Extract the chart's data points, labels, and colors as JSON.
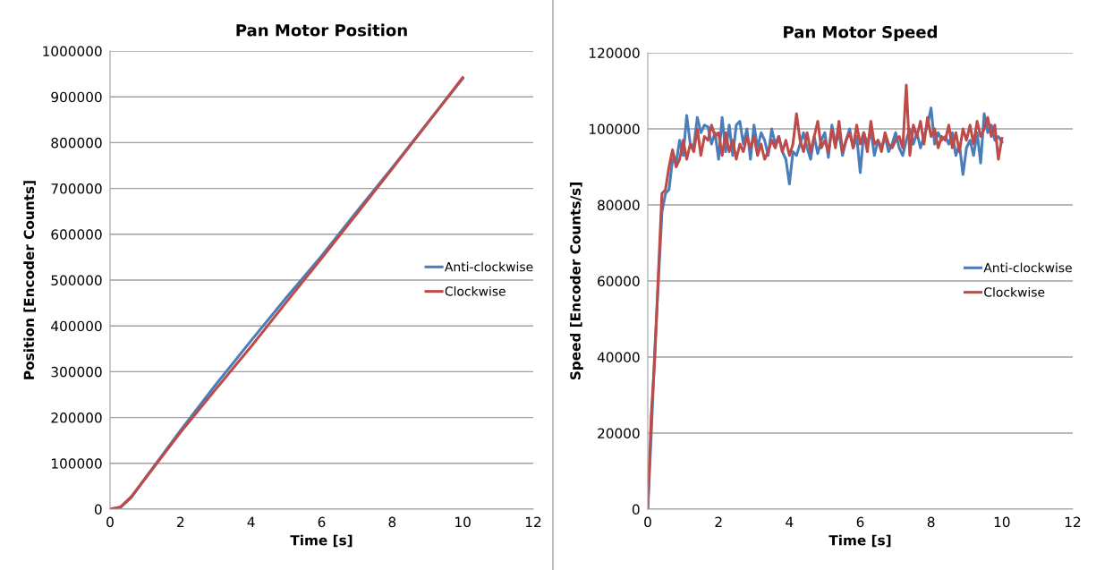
{
  "chart_data": [
    {
      "type": "line",
      "title": "Pan Motor Position",
      "xlabel": "Time [s]",
      "ylabel": "Position [Encoder Counts]",
      "xlim": [
        0,
        12
      ],
      "xticks": [
        0,
        2,
        4,
        6,
        8,
        10,
        12
      ],
      "ylim": [
        0,
        1000000
      ],
      "yticks": [
        0,
        100000,
        200000,
        300000,
        400000,
        500000,
        600000,
        700000,
        800000,
        900000,
        1000000
      ],
      "grid": "y",
      "legend": "right",
      "marker": "none",
      "line_style": "solid",
      "x": [
        0,
        0.3,
        0.6,
        1,
        2,
        3,
        4,
        5,
        6,
        7,
        8,
        9,
        10
      ],
      "series": [
        {
          "name": "Anti-clockwise",
          "color": "#4a7ebb",
          "values": [
            0,
            4000,
            25000,
            68000,
            172000,
            272000,
            368000,
            462000,
            553000,
            650000,
            745000,
            843000,
            940000
          ]
        },
        {
          "name": "Clockwise",
          "color": "#be4b48",
          "values": [
            0,
            5000,
            27000,
            67000,
            168000,
            262000,
            355000,
            452000,
            548000,
            645000,
            743000,
            842000,
            942000
          ]
        }
      ]
    },
    {
      "type": "line",
      "title": "Pan Motor Speed",
      "xlabel": "Time [s]",
      "ylabel": "Speed [Encoder Counts/s]",
      "xlim": [
        0,
        12
      ],
      "xticks": [
        0,
        2,
        4,
        6,
        8,
        10,
        12
      ],
      "ylim": [
        0,
        120000
      ],
      "yticks": [
        0,
        20000,
        40000,
        60000,
        80000,
        100000,
        120000
      ],
      "grid": "y",
      "legend": "right",
      "marker": "none",
      "line_style": "solid",
      "x": [
        0,
        0.1,
        0.2,
        0.3,
        0.4,
        0.5,
        0.6,
        0.7,
        0.8,
        0.9,
        1.0,
        1.1,
        1.2,
        1.3,
        1.4,
        1.5,
        1.6,
        1.7,
        1.8,
        1.9,
        2.0,
        2.1,
        2.2,
        2.3,
        2.4,
        2.5,
        2.6,
        2.7,
        2.8,
        2.9,
        3.0,
        3.1,
        3.2,
        3.3,
        3.4,
        3.5,
        3.6,
        3.7,
        3.8,
        3.9,
        4.0,
        4.1,
        4.2,
        4.3,
        4.4,
        4.5,
        4.6,
        4.7,
        4.8,
        4.9,
        5.0,
        5.1,
        5.2,
        5.3,
        5.4,
        5.5,
        5.6,
        5.7,
        5.8,
        5.9,
        6.0,
        6.1,
        6.2,
        6.3,
        6.4,
        6.5,
        6.6,
        6.7,
        6.8,
        6.9,
        7.0,
        7.1,
        7.2,
        7.3,
        7.4,
        7.5,
        7.6,
        7.7,
        7.8,
        7.9,
        8.0,
        8.1,
        8.2,
        8.3,
        8.4,
        8.5,
        8.6,
        8.7,
        8.8,
        8.9,
        9.0,
        9.1,
        9.2,
        9.3,
        9.4,
        9.5,
        9.6,
        9.7,
        9.8,
        9.9,
        10.0
      ],
      "series": [
        {
          "name": "Anti-clockwise",
          "color": "#4a7ebb",
          "values": [
            0,
            20000,
            42000,
            60000,
            78000,
            83000,
            84000,
            92000,
            91000,
            97000,
            93000,
            103500,
            96000,
            95500,
            103000,
            99000,
            101000,
            100500,
            96000,
            99000,
            92000,
            103000,
            94000,
            101000,
            93000,
            101000,
            102000,
            96000,
            100000,
            92000,
            101000,
            95000,
            99000,
            97000,
            93000,
            100000,
            96000,
            98000,
            94000,
            92000,
            85500,
            94000,
            93000,
            96000,
            99000,
            95000,
            92000,
            98000,
            93500,
            97000,
            99000,
            92500,
            101000,
            96000,
            99000,
            93000,
            97000,
            100000,
            95000,
            98000,
            88500,
            99000,
            96000,
            99500,
            93000,
            97000,
            95000,
            98000,
            94000,
            96000,
            99000,
            95000,
            93000,
            97000,
            100000,
            96000,
            99000,
            95000,
            98000,
            101000,
            105500,
            96000,
            99000,
            97000,
            98000,
            96000,
            99000,
            93000,
            96000,
            88000,
            95000,
            97000,
            93000,
            99000,
            91000,
            104000,
            99000,
            101000,
            97000,
            98000,
            96500
          ]
        },
        {
          "name": "Clockwise",
          "color": "#be4b48",
          "values": [
            0,
            25000,
            40000,
            62000,
            83000,
            84000,
            90000,
            94500,
            90000,
            92000,
            97000,
            92000,
            96000,
            94000,
            100000,
            93000,
            98000,
            97000,
            101000,
            98000,
            99000,
            93000,
            99000,
            94000,
            97000,
            92000,
            96000,
            94000,
            98000,
            95000,
            98000,
            93000,
            96000,
            92000,
            94000,
            97000,
            95000,
            98000,
            94000,
            97000,
            93000,
            96000,
            104000,
            97000,
            94000,
            99000,
            94000,
            98000,
            102000,
            95000,
            97000,
            94000,
            100000,
            95000,
            102000,
            94000,
            97000,
            99000,
            95000,
            101000,
            96000,
            99000,
            94000,
            102000,
            96000,
            97000,
            94000,
            99000,
            96000,
            95000,
            97000,
            98000,
            95000,
            111500,
            93000,
            101000,
            98000,
            102000,
            96000,
            103000,
            98000,
            100000,
            95000,
            98000,
            97000,
            101000,
            95000,
            99000,
            94000,
            100000,
            97000,
            101000,
            96000,
            102000,
            98000,
            100000,
            103000,
            98000,
            101000,
            92000,
            97500
          ]
        }
      ]
    }
  ]
}
